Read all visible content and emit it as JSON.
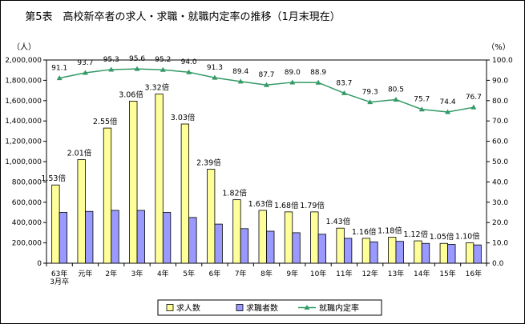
{
  "chart_data": {
    "type": "bar",
    "title": "第5表　高校新卒者の求人・求職・就職内定率の推移（1月末現在）",
    "y_left_unit": "（人）",
    "y_right_unit": "（%）",
    "y_left_ticks": [
      "0",
      "200,000",
      "400,000",
      "600,000",
      "800,000",
      "1,000,000",
      "1,200,000",
      "1,400,000",
      "1,600,000",
      "1,800,000",
      "2,000,000"
    ],
    "y_right_ticks": [
      "0.0",
      "10.0",
      "20.0",
      "30.0",
      "40.0",
      "50.0",
      "60.0",
      "70.0",
      "80.0",
      "90.0",
      "100.0"
    ],
    "ylim_left": [
      0,
      2000000
    ],
    "ylim_right": [
      0,
      100
    ],
    "categories": [
      [
        "63年",
        "3月卒"
      ],
      [
        "元年"
      ],
      [
        "2年"
      ],
      [
        "3年"
      ],
      [
        "4年"
      ],
      [
        "5年"
      ],
      [
        "6年"
      ],
      [
        "7年"
      ],
      [
        "8年"
      ],
      [
        "9年"
      ],
      [
        "10年"
      ],
      [
        "11年"
      ],
      [
        "12年"
      ],
      [
        "13年"
      ],
      [
        "14年"
      ],
      [
        "15年"
      ],
      [
        "16年"
      ]
    ],
    "series": [
      {
        "name": "求人数",
        "kind": "bar",
        "color": "#ffff99",
        "values": [
          770000,
          1020000,
          1330000,
          1595000,
          1665000,
          1370000,
          925000,
          625000,
          520000,
          505000,
          505000,
          345000,
          245000,
          255000,
          220000,
          195000,
          200000
        ]
      },
      {
        "name": "求職者数",
        "kind": "bar",
        "color": "#9999ff",
        "values": [
          500000,
          510000,
          520000,
          520000,
          500000,
          450000,
          385000,
          340000,
          315000,
          300000,
          285000,
          245000,
          210000,
          215000,
          195000,
          185000,
          180000
        ]
      },
      {
        "name": "就職内定率",
        "kind": "line",
        "axis": "right",
        "color": "#339966",
        "marker": "triangle",
        "values": [
          91.1,
          93.7,
          95.3,
          95.6,
          95.2,
          94.0,
          91.3,
          89.4,
          87.7,
          89.0,
          88.9,
          83.7,
          79.3,
          80.5,
          75.7,
          74.4,
          76.7
        ],
        "labels": [
          "91.1",
          "93.7",
          "95.3",
          "95.6",
          "95.2",
          "94.0",
          "91.3",
          "89.4",
          "87.7",
          "89.0",
          "88.9",
          "83.7",
          "79.3",
          "80.5",
          "75.7",
          "74.4",
          "76.7"
        ]
      }
    ],
    "ratio_labels": [
      "1.53倍",
      "2.01倍",
      "2.55倍",
      "3.06倍",
      "3.32倍",
      "3.03倍",
      "2.39倍",
      "1.82倍",
      "1.63倍",
      "1.68倍",
      "1.79倍",
      "1.43倍",
      "1.16倍",
      "1.18倍",
      "1.12倍",
      "1.05倍",
      "1.10倍"
    ],
    "legend": [
      "求人数",
      "求職者数",
      "就職内定率"
    ],
    "legend_position": "bottom",
    "grid": false
  }
}
